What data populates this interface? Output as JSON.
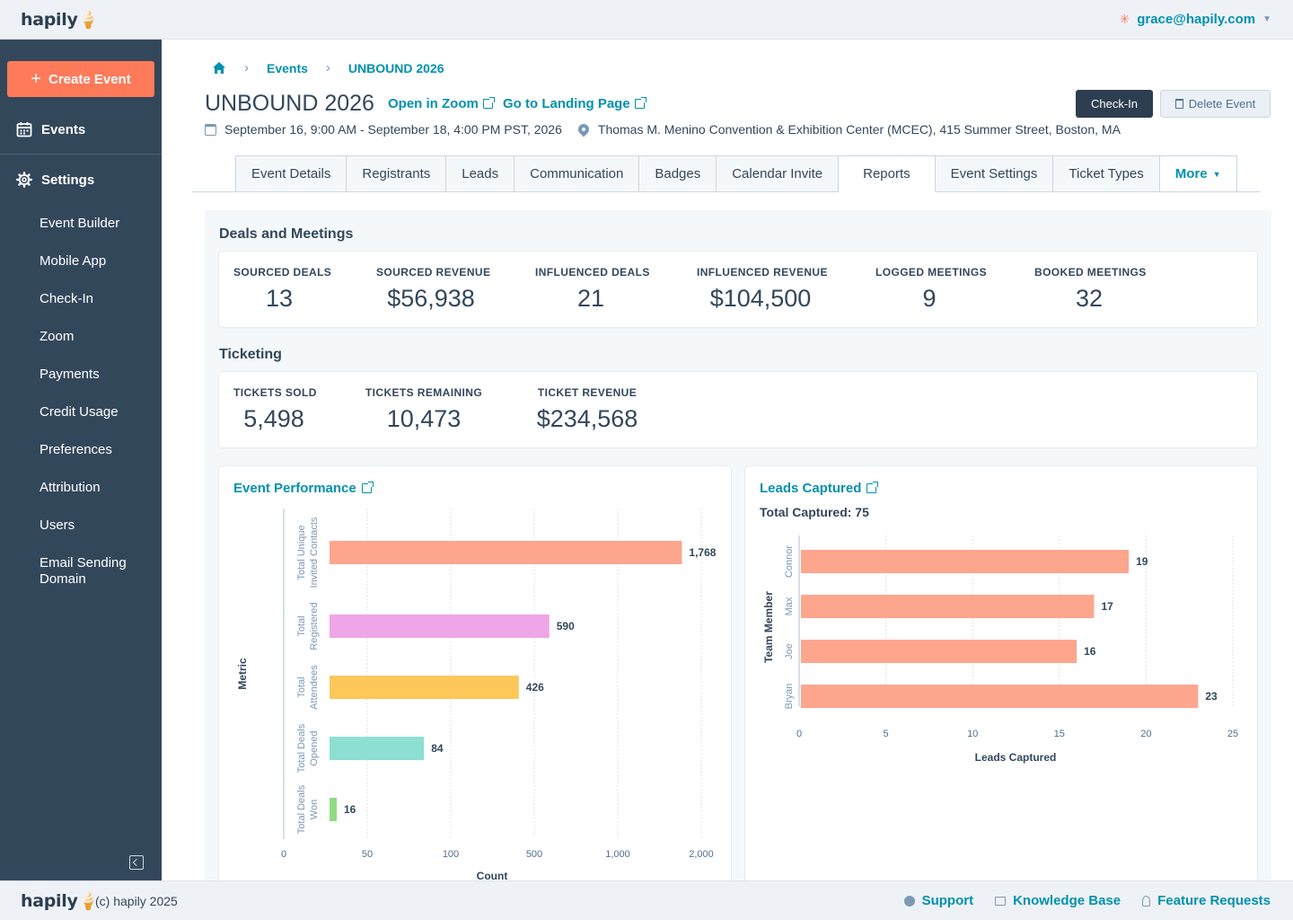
{
  "brand": {
    "logo_text": "hapily",
    "logo_glyph": "🍦"
  },
  "header": {
    "user_email": "grace@hapily.com",
    "icon": "hubspot-sprocket-icon"
  },
  "sidebar": {
    "create_label": "Create Event",
    "events_label": "Events",
    "settings_label": "Settings",
    "items": [
      {
        "label": "Event Builder"
      },
      {
        "label": "Mobile App"
      },
      {
        "label": "Check-In"
      },
      {
        "label": "Zoom"
      },
      {
        "label": "Payments"
      },
      {
        "label": "Credit Usage"
      },
      {
        "label": "Preferences"
      },
      {
        "label": "Attribution"
      },
      {
        "label": "Users"
      },
      {
        "label": "Email Sending Domain"
      }
    ]
  },
  "breadcrumb": {
    "events": "Events",
    "current": "UNBOUND 2026"
  },
  "event": {
    "title": "UNBOUND 2026",
    "zoom_link": "Open in Zoom",
    "landing_link": "Go to Landing Page",
    "checkin_label": "Check-In",
    "delete_label": "Delete Event",
    "dates": "September 16, 9:00 AM - September 18, 4:00 PM PST, 2026",
    "location": "Thomas M. Menino Convention & Exhibition Center (MCEC), 415 Summer Street, Boston, MA"
  },
  "tabs": [
    "Event Details",
    "Registrants",
    "Leads",
    "Communication",
    "Badges",
    "Calendar Invite",
    "Reports",
    "Event Settings",
    "Ticket Types"
  ],
  "tabs_active": "Reports",
  "tabs_more": "More",
  "deals": {
    "heading": "Deals and Meetings",
    "stats": [
      {
        "label": "SOURCED DEALS",
        "value": "13"
      },
      {
        "label": "SOURCED REVENUE",
        "value": "$56,938"
      },
      {
        "label": "INFLUENCED DEALS",
        "value": "21"
      },
      {
        "label": "INFLUENCED REVENUE",
        "value": "$104,500"
      },
      {
        "label": "LOGGED MEETINGS",
        "value": "9"
      },
      {
        "label": "BOOKED MEETINGS",
        "value": "32"
      }
    ]
  },
  "ticketing": {
    "heading": "Ticketing",
    "stats": [
      {
        "label": "TICKETS SOLD",
        "value": "5,498"
      },
      {
        "label": "TICKETS REMAINING",
        "value": "10,473"
      },
      {
        "label": "TICKET REVENUE",
        "value": "$234,568"
      }
    ]
  },
  "chart_data": [
    {
      "type": "bar",
      "orientation": "horizontal",
      "title": "Event Performance",
      "xlabel": "Count",
      "ylabel": "Metric",
      "scale": "log-like",
      "x_ticks": [
        "0",
        "50",
        "100",
        "500",
        "1,000",
        "2,000"
      ],
      "x_tick_values": [
        0,
        50,
        100,
        500,
        1000,
        2000
      ],
      "categories": [
        [
          "Total Unique",
          "Invited Contacts"
        ],
        [
          "Total",
          "Registered"
        ],
        [
          "Total",
          "Attendees"
        ],
        [
          "Total Deals",
          "Opened"
        ],
        [
          "Total Deals",
          "Won"
        ]
      ],
      "values": [
        1768,
        590,
        426,
        84,
        16
      ],
      "value_labels": [
        "1,768",
        "590",
        "426",
        "84",
        "16"
      ],
      "colors": [
        "#fea58e",
        "#eea6e8",
        "#fec75a",
        "#8ddfd3",
        "#90db84"
      ],
      "grid": true
    },
    {
      "type": "bar",
      "orientation": "horizontal",
      "title": "Leads Captured",
      "subtitle": "Total Captured: 75",
      "xlabel": "Leads Captured",
      "ylabel": "Team Member",
      "xlim": [
        0,
        25
      ],
      "x_ticks": [
        "0",
        "5",
        "10",
        "15",
        "20",
        "25"
      ],
      "x_tick_values": [
        0,
        5,
        10,
        15,
        20,
        25
      ],
      "categories": [
        "Connor",
        "Max",
        "Joe",
        "Bryan"
      ],
      "values": [
        19,
        17,
        16,
        23
      ],
      "value_labels": [
        "19",
        "17",
        "16",
        "23"
      ],
      "color": "#fea58e",
      "grid": true
    }
  ],
  "footer": {
    "copyright": "(c) hapily 2025",
    "support": "Support",
    "knowledge_base": "Knowledge Base",
    "feature_requests": "Feature Requests"
  }
}
